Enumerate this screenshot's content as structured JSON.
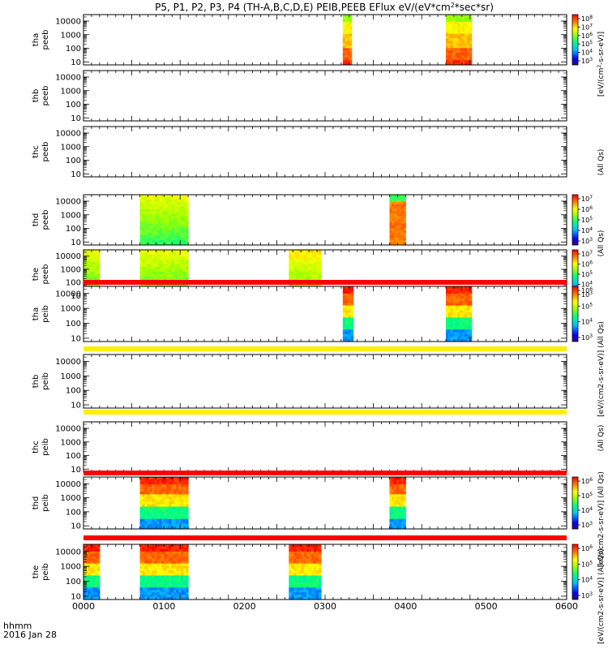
{
  "chart_data": {
    "type": "heatmap",
    "title": "P5, P1, P2, P3, P4 (TH-A,B,C,D,E) PEIB,PEEB EFlux eV/(eV*cm^2*sec*sr)",
    "title_parts": {
      "main": "P5, P1, P2, P3, P4 (TH-A,B,C,D,E) PEIB,PEEB EFlux eV/(eV*cm",
      "sup1": "2",
      "after": "*sec*sr)"
    },
    "x_axis": {
      "ticks": [
        "0000",
        "0100",
        "0200",
        "0300",
        "0400",
        "0500",
        "0600"
      ],
      "label_line1": "hhmm",
      "label_line2": "2016 Jan 28",
      "range_minutes": [
        0,
        360
      ]
    },
    "y_ticks": [
      "10",
      "100",
      "1000",
      "10000"
    ],
    "colors": {
      "stripe_red": "#ff0000",
      "stripe_yellow": "#ffee00"
    },
    "panels": [
      {
        "probe": "tha",
        "product": "peeb",
        "blocks": [
          {
            "start": 322,
            "end": 333,
            "profile": "ee_a"
          },
          {
            "start": 450,
            "end": 482,
            "profile": "ee_a"
          }
        ],
        "colorbar": {
          "ticks": [
            [
              "10",
              "8"
            ],
            [
              "10",
              "7"
            ],
            [
              "10",
              "6"
            ],
            [
              "10",
              "5"
            ],
            [
              "10",
              "4"
            ],
            [
              "10",
              "3"
            ]
          ],
          "label": "[eV/(cm2-s-sr-eV)]",
          "label_parts": [
            "[eV/(cm",
            "2",
            "-s-sr-eV)]"
          ]
        }
      },
      {
        "probe": "thb",
        "product": "peeb",
        "blocks": [],
        "colorbar": null
      },
      {
        "probe": "thc",
        "product": "peeb",
        "blocks": [],
        "colorbar": null
      },
      {
        "probe": "thd",
        "product": "peeb",
        "blocks": [
          {
            "start": 70,
            "end": 130,
            "profile": "ee_green"
          },
          {
            "start": 380,
            "end": 400,
            "profile": "ee_d2"
          }
        ],
        "colorbar": {
          "ticks": [
            [
              "10",
              "7"
            ],
            [
              "10",
              "6"
            ],
            [
              "10",
              "5"
            ],
            [
              "10",
              "4"
            ],
            [
              "10",
              "3"
            ]
          ],
          "label": "[eV/(cm2-s-sr-eV)]"
        }
      },
      {
        "probe": "the",
        "product": "peeb",
        "blocks": [
          {
            "start": 0,
            "end": 20,
            "profile": "ee_green"
          },
          {
            "start": 70,
            "end": 130,
            "profile": "ee_green"
          },
          {
            "start": 255,
            "end": 295,
            "profile": "ee_e3"
          }
        ],
        "colorbar": {
          "ticks": [
            [
              "10",
              "7"
            ],
            [
              "10",
              "6"
            ],
            [
              "10",
              "5"
            ],
            [
              "10",
              "4"
            ],
            [
              "10",
              "3"
            ]
          ],
          "label": "[eV/(cm2-s-sr-eV)]"
        }
      },
      {
        "probe": "tha",
        "product": "peib",
        "blocks": [
          {
            "start": 322,
            "end": 335,
            "profile": "ie"
          },
          {
            "start": 450,
            "end": 482,
            "profile": "ie"
          }
        ],
        "colorbar": {
          "ticks": [
            [
              "10",
              "6"
            ],
            [
              "10",
              "5"
            ],
            [
              "10",
              "4"
            ],
            [
              "10",
              "3"
            ]
          ],
          "label": "[eV/(cm2-s-sr-eV)]"
        }
      },
      {
        "probe": "thb",
        "product": "peib",
        "blocks": [],
        "colorbar": null
      },
      {
        "probe": "thc",
        "product": "peib",
        "blocks": [],
        "colorbar": null
      },
      {
        "probe": "thd",
        "product": "peib",
        "blocks": [
          {
            "start": 70,
            "end": 130,
            "profile": "ie"
          },
          {
            "start": 380,
            "end": 400,
            "profile": "ie"
          }
        ],
        "colorbar": {
          "ticks": [
            [
              "10",
              "6"
            ],
            [
              "10",
              "5"
            ],
            [
              "10",
              "4"
            ],
            [
              "10",
              "3"
            ]
          ],
          "label": "[eV/(cm2-s-sr-eV)]"
        }
      },
      {
        "probe": "the",
        "product": "peib",
        "blocks": [
          {
            "start": 0,
            "end": 20,
            "profile": "ie"
          },
          {
            "start": 70,
            "end": 130,
            "profile": "ie"
          },
          {
            "start": 255,
            "end": 295,
            "profile": "ie"
          }
        ],
        "colorbar": {
          "ticks": [
            [
              "10",
              "6"
            ],
            [
              "10",
              "5"
            ],
            [
              "10",
              "4"
            ],
            [
              "10",
              "3"
            ]
          ],
          "label": "[eV/(cm2-s-sr-eV)]"
        }
      }
    ],
    "overlap_labels": [
      {
        "text": "(All Qs)"
      },
      {
        "text": "(All Qs)"
      },
      {
        "text": "[eV/(cm2-s-sr-eV)] (All Qs)"
      },
      {
        "text": "(All Qs)"
      },
      {
        "text": "[eV/(cm2-s-sr-eV)] (All Qs)"
      },
      {
        "text": "[eV/(cm2-s-sr-eV)] (All Qs)"
      }
    ]
  }
}
